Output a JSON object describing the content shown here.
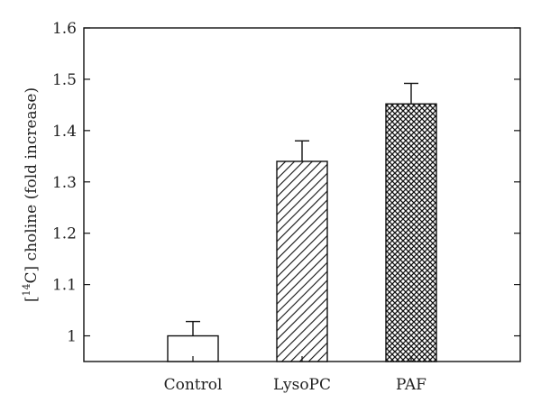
{
  "chart_data": {
    "type": "bar",
    "title": "",
    "xlabel": "",
    "ylabel": "[¹⁴C] choline (fold increase)",
    "ylabel_parts": {
      "open": "[",
      "sup": "14",
      "rest": "C] choline (fold increase)"
    },
    "ylim": [
      0.95,
      1.6
    ],
    "yticks": [
      "1",
      "1.1",
      "1.2",
      "1.3",
      "1.4",
      "1.5",
      "1.6"
    ],
    "yticks_values": [
      1.0,
      1.1,
      1.2,
      1.3,
      1.4,
      1.5,
      1.6
    ],
    "grid": false,
    "categories": [
      "Control",
      "LysoPC",
      "PAF"
    ],
    "values": [
      1.0,
      1.34,
      1.452
    ],
    "error_upper": [
      0.028,
      0.04,
      0.04
    ],
    "fill_patterns": [
      "none",
      "diagonal-hatch",
      "crosshatch"
    ]
  }
}
